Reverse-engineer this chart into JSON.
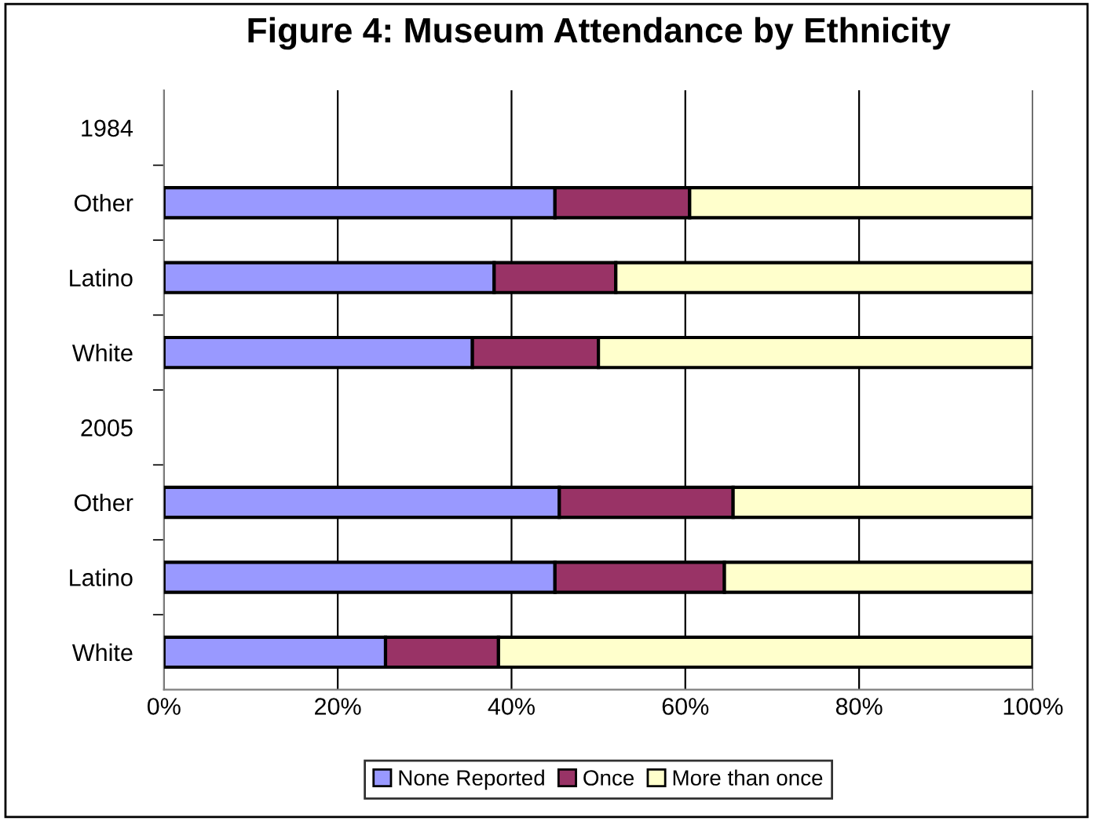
{
  "chart_data": {
    "type": "bar",
    "title": "Figure 4: Museum Attendance by Ethnicity",
    "orientation": "horizontal",
    "stacked": true,
    "categories": [
      "1984",
      "Other",
      "Latino",
      "White",
      "2005",
      "Other",
      "Latino",
      "White"
    ],
    "series": [
      {
        "name": "None Reported",
        "color": "#9999ff",
        "values": [
          null,
          45,
          38,
          35.5,
          null,
          45.5,
          45,
          25.5
        ]
      },
      {
        "name": "Once",
        "color": "#993366",
        "values": [
          null,
          15.5,
          14,
          14.5,
          null,
          20,
          19.5,
          13
        ]
      },
      {
        "name": "More than once",
        "color": "#ffffcc",
        "values": [
          null,
          39.5,
          48,
          50,
          null,
          34.5,
          35.5,
          61.5
        ]
      }
    ],
    "xlim": [
      0,
      100
    ],
    "xticks": [
      {
        "value": 0,
        "label": "0%"
      },
      {
        "value": 20,
        "label": "20%"
      },
      {
        "value": 40,
        "label": "40%"
      },
      {
        "value": 60,
        "label": "60%"
      },
      {
        "value": 80,
        "label": "80%"
      },
      {
        "value": 100,
        "label": "100%"
      }
    ],
    "grid": "x",
    "legend": "bottom"
  }
}
